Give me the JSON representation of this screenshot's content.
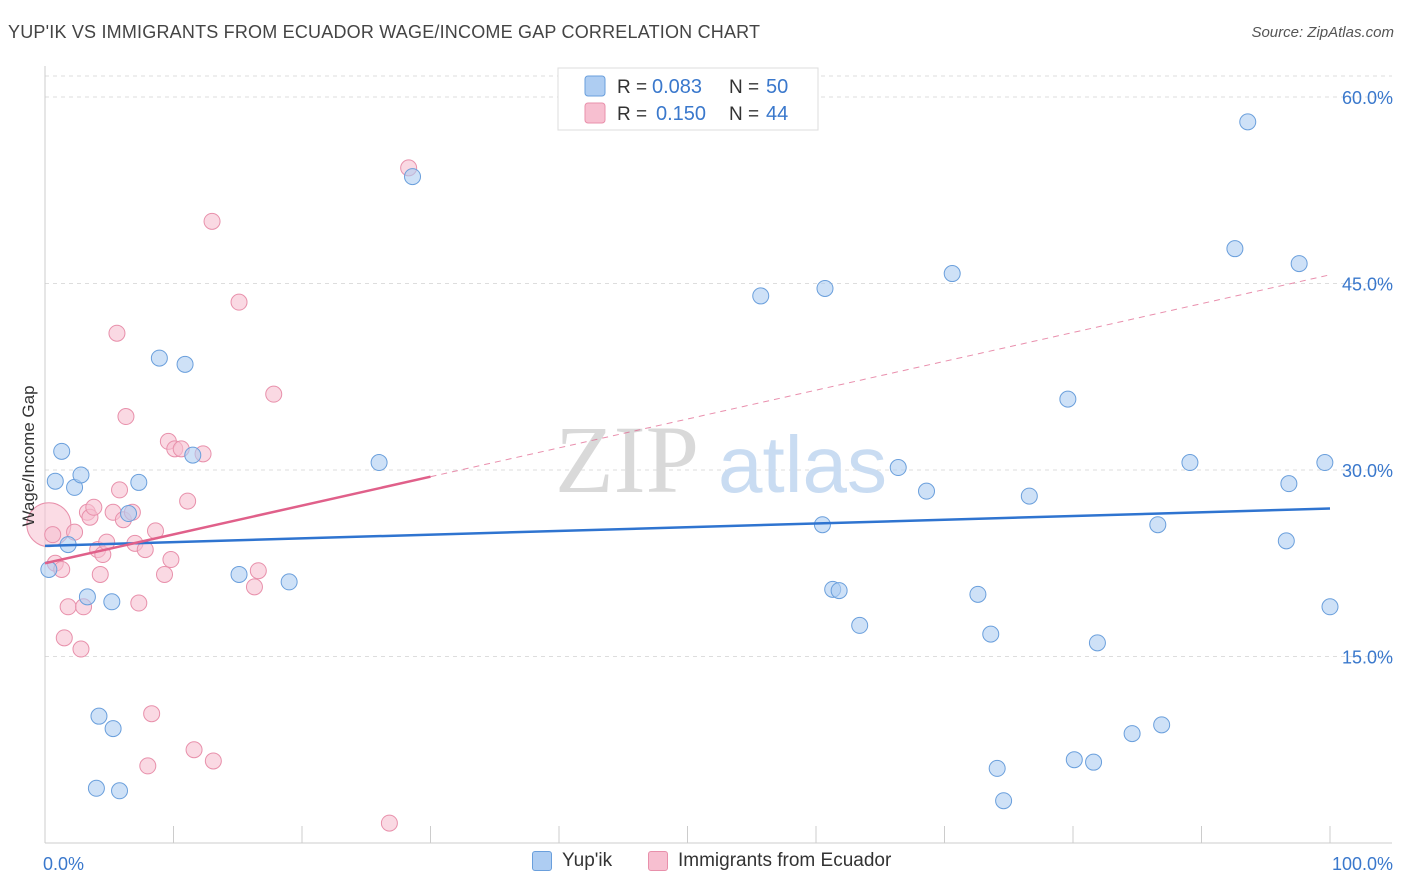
{
  "header": {
    "title": "YUP'IK VS IMMIGRANTS FROM ECUADOR WAGE/INCOME GAP CORRELATION CHART",
    "source": "Source: ZipAtlas.com"
  },
  "watermark": {
    "part1": "ZIP",
    "part2": "atlas"
  },
  "legend_top": {
    "rows": [
      {
        "r_label": "R =",
        "r_value": "0.083",
        "n_label": "N =",
        "n_value": "50"
      },
      {
        "r_label": "R =",
        "r_value": "0.150",
        "n_label": "N =",
        "n_value": "44"
      }
    ]
  },
  "legend_bottom": {
    "items": [
      {
        "label": "Yup'ik"
      },
      {
        "label": "Immigrants from Ecuador"
      }
    ]
  },
  "colors": {
    "blue_fill": "#aecdf2",
    "blue_stroke": "#6a9fdc",
    "blue_line": "#2f74d0",
    "pink_fill": "#f7bfd0",
    "pink_stroke": "#e890ab",
    "pink_line": "#e0608a",
    "tick_text": "#3a78cc",
    "grid": "#dddddd"
  },
  "chart_data": {
    "type": "scatter",
    "title": "YUP'IK VS IMMIGRANTS FROM ECUADOR WAGE/INCOME GAP CORRELATION CHART",
    "xlabel": "",
    "ylabel": "Wage/Income Gap",
    "xlim": [
      0,
      100
    ],
    "ylim": [
      0,
      60
    ],
    "x_tick_labels": [
      "0.0%",
      "100.0%"
    ],
    "y_ticks": [
      15,
      30,
      45,
      60
    ],
    "y_tick_labels": [
      "15.0%",
      "30.0%",
      "45.0%",
      "60.0%"
    ],
    "grid": true,
    "legend_position": "top-center",
    "series": [
      {
        "name": "Yup'ik",
        "r": 0.083,
        "n": 50,
        "points": [
          [
            0.3,
            22.0
          ],
          [
            0.8,
            29.1
          ],
          [
            1.3,
            31.5
          ],
          [
            1.8,
            24.0
          ],
          [
            2.3,
            28.6
          ],
          [
            2.8,
            29.6
          ],
          [
            3.3,
            19.8
          ],
          [
            4.0,
            4.4
          ],
          [
            4.2,
            10.2
          ],
          [
            5.2,
            19.4
          ],
          [
            5.3,
            9.2
          ],
          [
            5.8,
            4.2
          ],
          [
            6.5,
            26.5
          ],
          [
            7.3,
            29.0
          ],
          [
            8.9,
            39.0
          ],
          [
            10.9,
            38.5
          ],
          [
            11.5,
            31.2
          ],
          [
            15.1,
            21.6
          ],
          [
            19.0,
            21.0
          ],
          [
            26.0,
            30.6
          ],
          [
            28.6,
            53.6
          ],
          [
            55.7,
            44.0
          ],
          [
            60.5,
            25.6
          ],
          [
            60.7,
            44.6
          ],
          [
            61.3,
            20.4
          ],
          [
            61.8,
            20.3
          ],
          [
            63.4,
            17.5
          ],
          [
            66.4,
            30.2
          ],
          [
            68.6,
            28.3
          ],
          [
            70.6,
            45.8
          ],
          [
            72.6,
            20.0
          ],
          [
            73.6,
            16.8
          ],
          [
            74.1,
            6.0
          ],
          [
            74.6,
            3.4
          ],
          [
            76.6,
            27.9
          ],
          [
            79.6,
            35.7
          ],
          [
            80.1,
            6.7
          ],
          [
            81.6,
            6.5
          ],
          [
            81.9,
            16.1
          ],
          [
            84.6,
            8.8
          ],
          [
            86.6,
            25.6
          ],
          [
            86.9,
            9.5
          ],
          [
            89.1,
            30.6
          ],
          [
            92.6,
            47.8
          ],
          [
            93.6,
            58.0
          ],
          [
            96.6,
            24.3
          ],
          [
            96.8,
            28.9
          ],
          [
            97.6,
            46.6
          ],
          [
            99.6,
            30.6
          ],
          [
            101.6,
            19.0
          ]
        ],
        "trend": {
          "x": [
            0,
            100
          ],
          "y": [
            23.9,
            26.9
          ]
        }
      },
      {
        "name": "Immigrants from Ecuador",
        "r": 0.15,
        "n": 44,
        "points": [
          [
            0.3,
            25.6
          ],
          [
            0.6,
            24.8
          ],
          [
            0.8,
            22.5
          ],
          [
            1.3,
            22.0
          ],
          [
            1.5,
            16.5
          ],
          [
            1.8,
            19.0
          ],
          [
            2.3,
            25.0
          ],
          [
            2.8,
            15.6
          ],
          [
            3.0,
            19.0
          ],
          [
            3.3,
            26.6
          ],
          [
            3.5,
            26.2
          ],
          [
            3.8,
            27.0
          ],
          [
            4.1,
            23.6
          ],
          [
            4.3,
            21.6
          ],
          [
            4.5,
            23.2
          ],
          [
            4.8,
            24.2
          ],
          [
            5.3,
            26.6
          ],
          [
            5.6,
            41.0
          ],
          [
            5.8,
            28.4
          ],
          [
            6.1,
            26.0
          ],
          [
            6.3,
            34.3
          ],
          [
            6.8,
            26.6
          ],
          [
            7.0,
            24.1
          ],
          [
            7.3,
            19.3
          ],
          [
            7.8,
            23.6
          ],
          [
            8.0,
            6.2
          ],
          [
            8.3,
            10.4
          ],
          [
            8.6,
            25.1
          ],
          [
            9.3,
            21.6
          ],
          [
            9.6,
            32.3
          ],
          [
            9.8,
            22.8
          ],
          [
            10.1,
            31.7
          ],
          [
            10.6,
            31.7
          ],
          [
            11.1,
            27.5
          ],
          [
            11.6,
            7.5
          ],
          [
            12.3,
            31.3
          ],
          [
            13.1,
            6.6
          ],
          [
            15.1,
            43.5
          ],
          [
            16.3,
            20.6
          ],
          [
            16.6,
            21.9
          ],
          [
            17.8,
            36.1
          ],
          [
            26.8,
            1.6
          ],
          [
            28.3,
            54.3
          ],
          [
            13.0,
            50.0
          ]
        ],
        "trend": {
          "x": [
            0,
            100
          ],
          "y": [
            22.5,
            45.7
          ]
        },
        "trend_solid_until_x": 30
      }
    ]
  }
}
